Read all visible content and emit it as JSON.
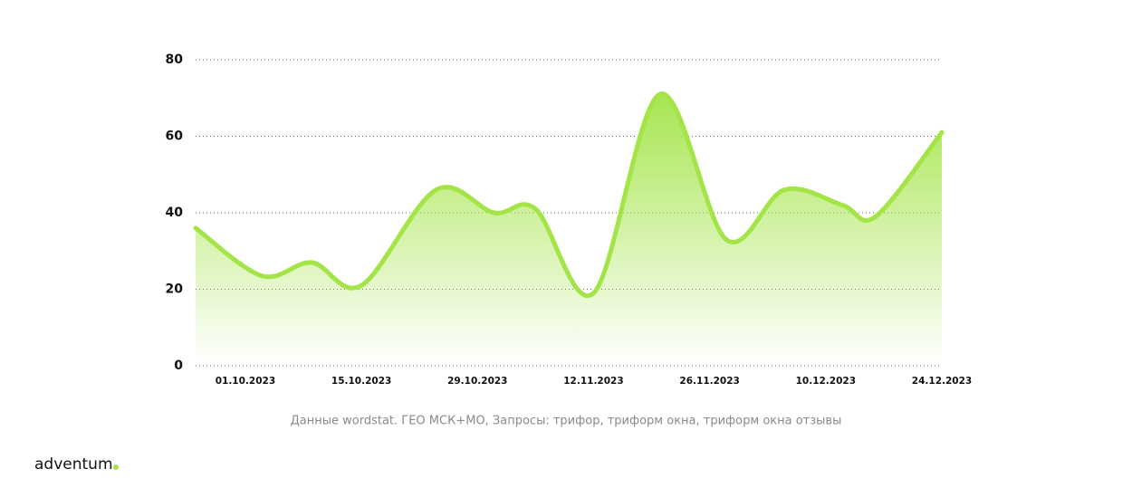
{
  "chart_data": {
    "type": "line",
    "x": [
      -6,
      2,
      8,
      14,
      23,
      30,
      35,
      42,
      50,
      58,
      65,
      72,
      76,
      84
    ],
    "xlim": [
      -6,
      84
    ],
    "xticks": [
      {
        "value": 0,
        "label": "01.10.2023"
      },
      {
        "value": 14,
        "label": "15.10.2023"
      },
      {
        "value": 28,
        "label": "29.10.2023"
      },
      {
        "value": 42,
        "label": "12.11.2023"
      },
      {
        "value": 56,
        "label": "26.11.2023"
      },
      {
        "value": 70,
        "label": "10.12.2023"
      },
      {
        "value": 84,
        "label": "24.12.2023"
      }
    ],
    "series": [
      {
        "color": "#a3e447",
        "values": [
          36,
          23.5,
          27,
          21,
          46,
          40,
          41,
          19,
          71,
          33,
          46,
          42,
          39,
          61
        ]
      }
    ],
    "ylim": [
      0,
      80
    ],
    "yticks": [
      0,
      20,
      40,
      60,
      80
    ],
    "grid": true,
    "caption": "Данные wordstat. ГЕО МСК+МО, Запросы: трифор, триформ окна, триформ окна отзывы"
  },
  "brand": "adventum"
}
